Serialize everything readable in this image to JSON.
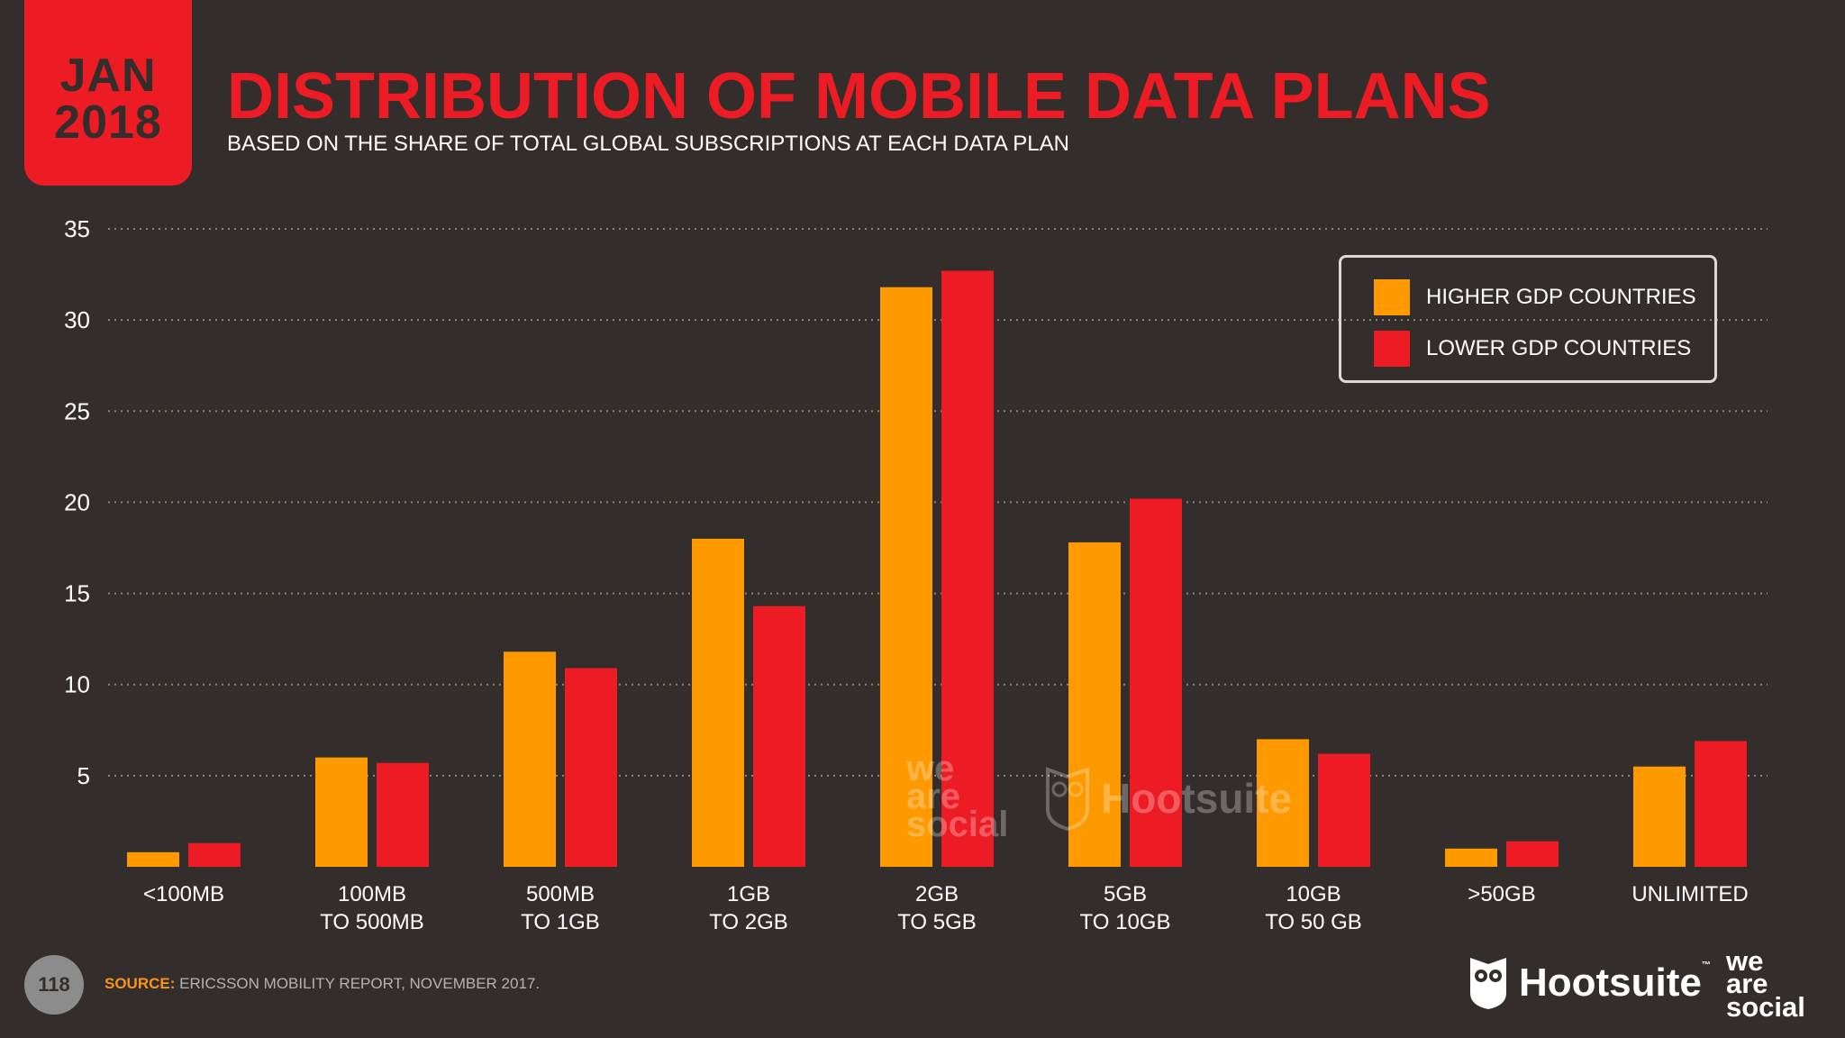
{
  "badge": {
    "month": "JAN",
    "year": "2018"
  },
  "title": "DISTRIBUTION OF MOBILE DATA PLANS",
  "subtitle": "BASED ON THE SHARE OF TOTAL GLOBAL SUBSCRIPTIONS AT EACH DATA PLAN",
  "colors": {
    "higher": "#ff9900",
    "lower": "#ed1c24",
    "background": "#332e2b",
    "grid": "#8a8480"
  },
  "chart_data": {
    "type": "bar",
    "categories": [
      [
        "<100MB"
      ],
      [
        "100MB",
        "TO 500MB"
      ],
      [
        "500MB",
        "TO 1GB"
      ],
      [
        "1GB",
        "TO 2GB"
      ],
      [
        "2GB",
        "TO 5GB"
      ],
      [
        "5GB",
        "TO 10GB"
      ],
      [
        "10GB",
        "TO 50 GB"
      ],
      [
        ">50GB"
      ],
      [
        "UNLIMITED"
      ]
    ],
    "series": [
      {
        "name": "HIGHER GDP COUNTRIES",
        "color": "#ff9900",
        "values": [
          0.8,
          6.0,
          11.8,
          18.0,
          31.8,
          17.8,
          7.0,
          1.0,
          5.5
        ]
      },
      {
        "name": "LOWER GDP COUNTRIES",
        "color": "#ed1c24",
        "values": [
          1.3,
          5.7,
          10.9,
          14.3,
          32.7,
          20.2,
          6.2,
          1.4,
          6.9
        ]
      }
    ],
    "yticks": [
      5,
      10,
      15,
      20,
      25,
      30,
      35
    ],
    "ylim": [
      0,
      35
    ],
    "grid": true,
    "legend_position": "top-right"
  },
  "footer": {
    "page_number": "118",
    "source_label": "SOURCE:",
    "source_text": "ERICSSON MOBILITY REPORT, NOVEMBER 2017.",
    "hootsuite": "Hootsuite",
    "tm": "™",
    "we": "we",
    "are": "are",
    "social": "social"
  }
}
